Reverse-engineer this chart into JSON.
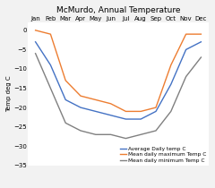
{
  "title": "McMurdo, Annual Temperature",
  "ylabel": "Temp deg C",
  "months": [
    "Jan",
    "Feb",
    "Mar",
    "Apr",
    "May",
    "Jun",
    "Jul",
    "Aug",
    "Sep",
    "Oct",
    "Nov",
    "Dec"
  ],
  "avg_daily": [
    -3,
    -9,
    -18,
    -20,
    -21,
    -22,
    -23,
    -23,
    -21,
    -14,
    -5,
    -3
  ],
  "mean_daily_max": [
    0,
    -1,
    -13,
    -17,
    -18,
    -19,
    -21,
    -21,
    -20,
    -9,
    -1,
    -1
  ],
  "mean_daily_min": [
    -6,
    -15,
    -24,
    -26,
    -27,
    -27,
    -28,
    -27,
    -26,
    -21,
    -12,
    -7
  ],
  "ylim": [
    -35,
    2
  ],
  "yticks": [
    0,
    -5,
    -10,
    -15,
    -20,
    -25,
    -30,
    -35
  ],
  "line_colors": {
    "avg": "#4472C4",
    "max": "#ED7D31",
    "min": "#808080"
  },
  "legend_labels": [
    "Average Daily temp C",
    "Mean daily maximum Temp C",
    "Mean daily minimum Temp C"
  ],
  "bg_color": "#F2F2F2",
  "plot_bg": "#FFFFFF",
  "grid_color": "#FFFFFF",
  "title_fontsize": 6.5,
  "label_fontsize": 5.0,
  "tick_fontsize": 5.0,
  "legend_fontsize": 4.2,
  "linewidth": 1.0
}
